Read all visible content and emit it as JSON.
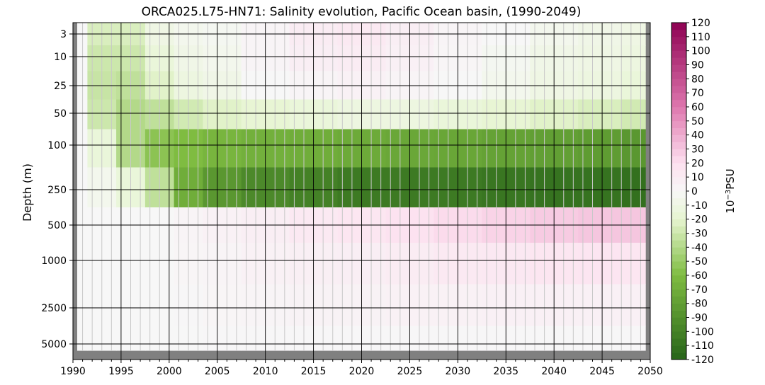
{
  "chart_data": {
    "type": "heatmap",
    "title": "ORCA025.L75-HN71: Salinity evolution, Pacific Ocean basin, (1990-2049)",
    "xlabel": "",
    "ylabel": "Depth (m)",
    "xlim": [
      1990,
      2050
    ],
    "x_ticks": [
      "1990",
      "1995",
      "2000",
      "2005",
      "2010",
      "2015",
      "2020",
      "2025",
      "2030",
      "2035",
      "2040",
      "2045",
      "2050"
    ],
    "y_scale": "nonlinear (depth, shallow at top)",
    "y_ticks": [
      "3",
      "10",
      "25",
      "50",
      "100",
      "250",
      "500",
      "1000",
      "2500",
      "5000"
    ],
    "grid": true,
    "colorbar": {
      "label_prefix": "10",
      "label_exponent": "−3",
      "label_suffix": "PSU",
      "range": [
        -120,
        120
      ],
      "step": 5,
      "ticks": [
        "120",
        "110",
        "100",
        "90",
        "80",
        "70",
        "60",
        "50",
        "40",
        "30",
        "20",
        "10",
        "0",
        "-10",
        "-20",
        "-30",
        "-40",
        "-50",
        "-60",
        "-70",
        "-80",
        "-90",
        "-100",
        "-110",
        "-120"
      ],
      "colormap": "PiYG",
      "colors": {
        "negative_extreme": "#276419",
        "negative_mid": "#7fbc41",
        "negative_light": "#e6f5d0",
        "zero": "#f7f7f7",
        "positive_light": "#fde0ef",
        "positive_mid": "#de77ae",
        "positive_extreme": "#8e0152"
      }
    },
    "years": [
      1990,
      1993,
      1996,
      1999,
      2002,
      2005,
      2010,
      2015,
      2020,
      2025,
      2030,
      2035,
      2040,
      2045,
      2049
    ],
    "depths": [
      "3",
      "10",
      "25",
      "50",
      "100",
      "250",
      "500",
      "1000",
      "2500",
      "5000"
    ],
    "values": [
      [
        0,
        -25,
        -25,
        -10,
        -5,
        -3,
        3,
        10,
        12,
        8,
        3,
        0,
        -5,
        -8,
        -10
      ],
      [
        0,
        -30,
        -30,
        -15,
        -8,
        -5,
        3,
        8,
        10,
        6,
        2,
        -3,
        -8,
        -10,
        -12
      ],
      [
        0,
        -32,
        -35,
        -22,
        -12,
        -8,
        0,
        3,
        5,
        3,
        0,
        -5,
        -10,
        -12,
        -15
      ],
      [
        0,
        -30,
        -40,
        -35,
        -28,
        -22,
        -18,
        -15,
        -12,
        -12,
        -15,
        -18,
        -22,
        -25,
        -28
      ],
      [
        0,
        -15,
        -40,
        -55,
        -60,
        -65,
        -68,
        -70,
        -72,
        -74,
        -75,
        -78,
        -80,
        -82,
        -85
      ],
      [
        0,
        -5,
        -15,
        -35,
        -70,
        -85,
        -95,
        -100,
        -105,
        -105,
        -105,
        -108,
        -110,
        -110,
        -112
      ],
      [
        0,
        0,
        0,
        0,
        3,
        5,
        8,
        12,
        15,
        18,
        22,
        25,
        28,
        30,
        30
      ],
      [
        0,
        0,
        0,
        0,
        2,
        3,
        5,
        7,
        8,
        10,
        12,
        13,
        15,
        16,
        15
      ],
      [
        0,
        0,
        0,
        0,
        1,
        2,
        3,
        4,
        4,
        5,
        5,
        6,
        6,
        6,
        6
      ],
      [
        0,
        0,
        0,
        0,
        0,
        1,
        1,
        1,
        1,
        1,
        1,
        1,
        1,
        1,
        1
      ]
    ]
  }
}
